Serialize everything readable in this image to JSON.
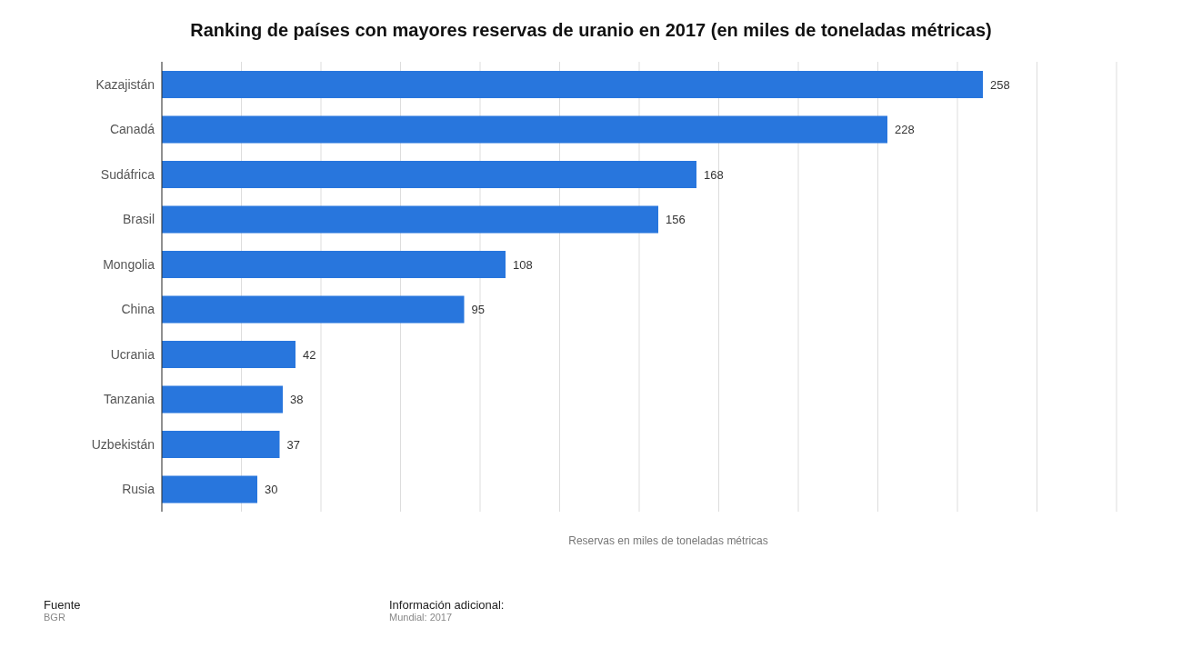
{
  "chart_data": {
    "type": "bar",
    "orientation": "horizontal",
    "title": "Ranking de países con mayores reservas de uranio en 2017 (en miles de toneladas métricas)",
    "categories": [
      "Kazajistán",
      "Canadá",
      "Sudáfrica",
      "Brasil",
      "Mongolia",
      "China",
      "Ucrania",
      "Tanzania",
      "Uzbekistán",
      "Rusia"
    ],
    "values": [
      258,
      228,
      168,
      156,
      108,
      95,
      42,
      38,
      37,
      30
    ],
    "color": "#2876dd",
    "xlabel": "Reservas en miles de toneladas métricas",
    "tick_labels": "y",
    "grid": "x",
    "data_labels": true,
    "annotations": [
      "Fuente",
      "BGR",
      "Información adicional:",
      "Mundial: 2017"
    ]
  }
}
